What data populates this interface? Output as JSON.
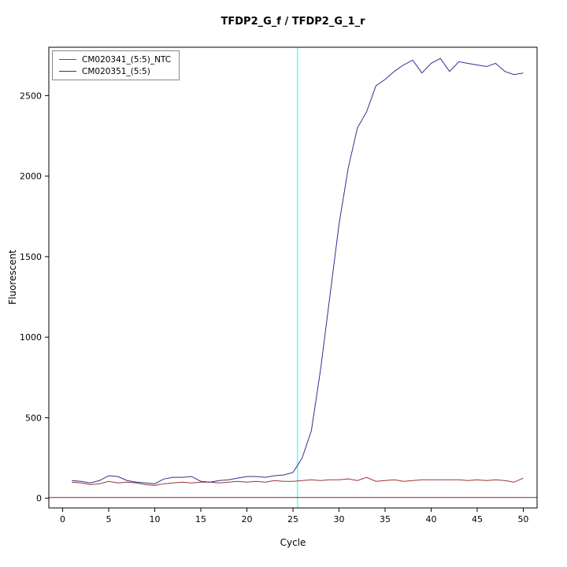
{
  "chart_data": {
    "type": "line",
    "title": "TFDP2_G_f / TFDP2_G_1_r",
    "xlabel": "Cycle",
    "ylabel": "Fluorescent",
    "xlim": [
      -1.5,
      51.5
    ],
    "ylim": [
      -60,
      2800
    ],
    "x_ticks": [
      0,
      5,
      10,
      15,
      20,
      25,
      30,
      35,
      40,
      45,
      50
    ],
    "y_ticks": [
      0,
      500,
      1000,
      1500,
      2000,
      2500
    ],
    "grid": false,
    "legend_position": "top-left",
    "x": [
      1,
      2,
      3,
      4,
      5,
      6,
      7,
      8,
      9,
      10,
      11,
      12,
      13,
      14,
      15,
      16,
      17,
      18,
      19,
      20,
      21,
      22,
      23,
      24,
      25,
      26,
      27,
      28,
      29,
      30,
      31,
      32,
      33,
      34,
      35,
      36,
      37,
      38,
      39,
      40,
      41,
      42,
      43,
      44,
      45,
      46,
      47,
      48,
      49,
      50
    ],
    "series": [
      {
        "name": "CM020341_(5:5)_NTC",
        "color": "#9b3535",
        "values": [
          100,
          95,
          85,
          90,
          105,
          95,
          100,
          95,
          85,
          80,
          90,
          95,
          100,
          95,
          100,
          100,
          95,
          100,
          105,
          100,
          105,
          100,
          110,
          105,
          105,
          110,
          115,
          110,
          115,
          115,
          120,
          110,
          130,
          105,
          110,
          115,
          105,
          110,
          115,
          115,
          115,
          115,
          115,
          110,
          115,
          110,
          115,
          110,
          100,
          125
        ]
      },
      {
        "name": "CM020351_(5:5)",
        "color": "#30308c",
        "values": [
          110,
          105,
          95,
          110,
          140,
          135,
          110,
          100,
          95,
          90,
          120,
          130,
          130,
          135,
          105,
          100,
          110,
          115,
          125,
          135,
          135,
          130,
          140,
          145,
          160,
          250,
          420,
          800,
          1250,
          1700,
          2050,
          2300,
          2400,
          2560,
          2600,
          2650,
          2690,
          2720,
          2640,
          2700,
          2730,
          2650,
          2710,
          2700,
          2690,
          2680,
          2700,
          2650,
          2630,
          2640
        ]
      }
    ],
    "threshold_vline": {
      "x": 25.5,
      "color": "#00ffff"
    },
    "baseline_hline": {
      "y": 5,
      "color": "#8b2222"
    }
  }
}
